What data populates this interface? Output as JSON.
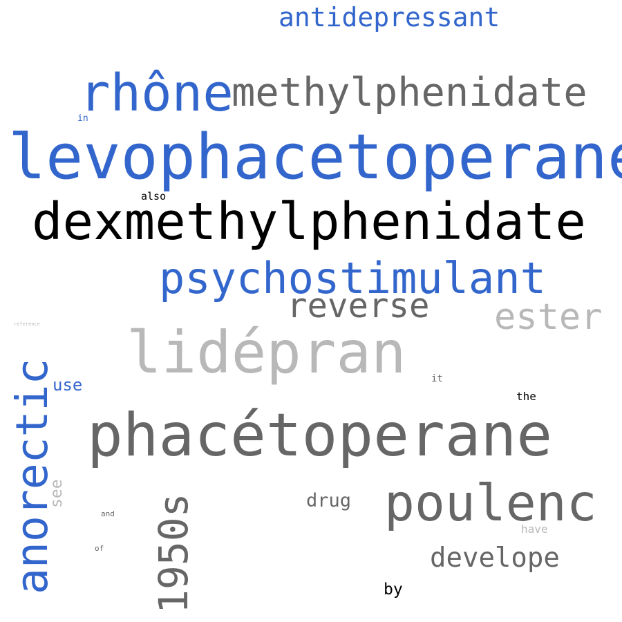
{
  "colors": {
    "blue": "#3366cc",
    "dark_gray": "#666666",
    "light_gray": "#b8b8b8",
    "black": "#000000"
  },
  "words": {
    "antidepressant": "antidepressant",
    "rhone": "rhône",
    "methylphenidate": "methylphenidate",
    "in": "in",
    "levophacetoperane": "levophacetoperane",
    "also": "also",
    "dexmethylphenidate": "dexmethylphenidate",
    "psychostimulant": "psychostimulant",
    "reverse": "reverse",
    "ester": "ester",
    "reference": "reference",
    "lidepran": "lidépran",
    "anorectic": "anorectic",
    "use": "use",
    "it": "it",
    "the": "the",
    "phacetoperane": "phacétoperane",
    "see": "see",
    "1950s": "1950s",
    "drug": "drug",
    "poulenc": "poulenc",
    "and": "and",
    "have": "have",
    "of": "of",
    "develope": "develope",
    "by": "by"
  }
}
